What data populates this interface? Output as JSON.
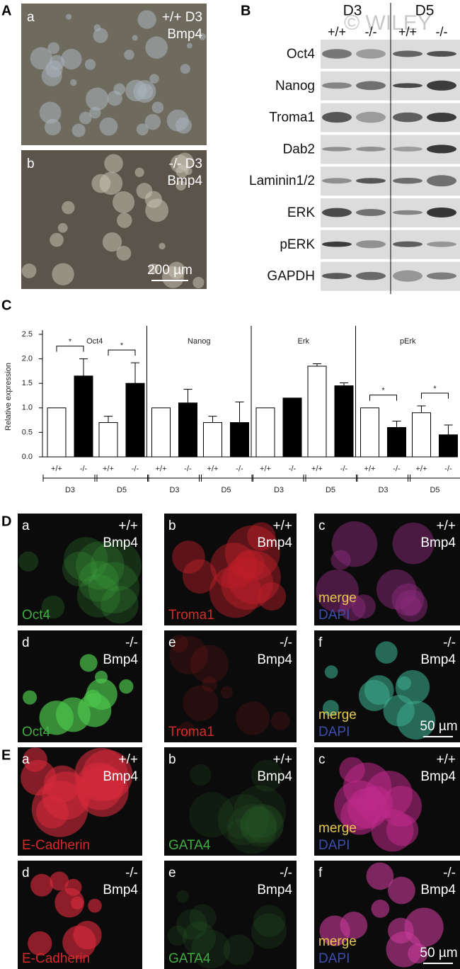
{
  "panel_a": {
    "label": "A",
    "images": [
      {
        "letter": "a",
        "genotype": "+/+ D3",
        "treatment": "Bmp4"
      },
      {
        "letter": "b",
        "genotype": "-/- D3",
        "treatment": "Bmp4",
        "scale_bar": "200 µm"
      }
    ]
  },
  "panel_b": {
    "label": "B",
    "watermark": "© WILEY",
    "days": [
      "D3",
      "D5"
    ],
    "genotypes": [
      "+/+",
      "-/-",
      "+/+",
      "-/-"
    ],
    "proteins": [
      "Oct4",
      "Nanog",
      "Troma1",
      "Dab2",
      "Laminin1/2",
      "ERK",
      "pERK",
      "GAPDH"
    ]
  },
  "chart_data": {
    "type": "bar",
    "label": "C",
    "ylabel": "Relative expression",
    "groups": [
      "Oct4",
      "Nanog",
      "Erk",
      "pErk"
    ],
    "categories": [
      "+/+",
      "-/-",
      "+/+",
      "-/-",
      "+/+",
      "-/-",
      "+/+",
      "-/-",
      "+/+",
      "-/-",
      "+/+",
      "-/-",
      "+/+",
      "-/-",
      "+/+",
      "-/-"
    ],
    "days": [
      "D3",
      "D5",
      "D3",
      "D5",
      "D3",
      "D5",
      "D3",
      "D5"
    ],
    "values": [
      1.0,
      1.65,
      0.7,
      1.5,
      1.0,
      1.1,
      0.7,
      0.7,
      1.0,
      1.2,
      1.85,
      1.45,
      1.0,
      0.6,
      0.9,
      0.45
    ],
    "errors": [
      null,
      0.35,
      0.13,
      0.42,
      null,
      0.28,
      0.13,
      0.42,
      null,
      null,
      0.05,
      0.06,
      null,
      0.13,
      0.14,
      0.2
    ],
    "colors": [
      "#ffffff",
      "#000000"
    ],
    "significance": [
      "*",
      "*",
      null,
      null,
      null,
      null,
      "*",
      "*"
    ],
    "ylim": [
      0,
      2.5
    ],
    "yticks": [
      {
        "value": 0,
        "label": "0.0"
      },
      {
        "value": 0.5,
        "label": "0.5"
      },
      {
        "value": 1,
        "label": "1.0"
      },
      {
        "value": 1.5,
        "label": "1.5"
      },
      {
        "value": 2,
        "label": "2.0"
      },
      {
        "value": 2.5,
        "label": "2.5"
      }
    ]
  },
  "panel_d": {
    "label": "D",
    "images": [
      {
        "letter": "a",
        "genotype": "+/+",
        "treatment": "Bmp4",
        "stains": [
          {
            "text": "Oct4",
            "color": "#3fae3f"
          }
        ]
      },
      {
        "letter": "b",
        "genotype": "+/+",
        "treatment": "Bmp4",
        "stains": [
          {
            "text": "Troma1",
            "color": "#d42a2a"
          }
        ]
      },
      {
        "letter": "c",
        "genotype": "+/+",
        "treatment": "Bmp4",
        "stains": [
          {
            "text": "merge",
            "color": "#e8c84a"
          },
          {
            "text": "DAPI",
            "color": "#3a4fb0"
          }
        ]
      },
      {
        "letter": "d",
        "genotype": "-/-",
        "treatment": "Bmp4",
        "stains": [
          {
            "text": "Oct4",
            "color": "#3fae3f"
          }
        ]
      },
      {
        "letter": "e",
        "genotype": "-/-",
        "treatment": "Bmp4",
        "stains": [
          {
            "text": "Troma1",
            "color": "#d42a2a"
          }
        ]
      },
      {
        "letter": "f",
        "genotype": "-/-",
        "treatment": "Bmp4",
        "stains": [
          {
            "text": "merge",
            "color": "#e8c84a"
          },
          {
            "text": "DAPI",
            "color": "#3a4fb0"
          }
        ],
        "scale_bar": "50 µm"
      }
    ]
  },
  "panel_e": {
    "label": "E",
    "images": [
      {
        "letter": "a",
        "genotype": "+/+",
        "treatment": "Bmp4",
        "stains": [
          {
            "text": "E-Cadherin",
            "color": "#d42a2a"
          }
        ]
      },
      {
        "letter": "b",
        "genotype": "+/+",
        "treatment": "Bmp4",
        "stains": [
          {
            "text": "GATA4",
            "color": "#3fae3f"
          }
        ]
      },
      {
        "letter": "c",
        "genotype": "+/+",
        "treatment": "Bmp4",
        "stains": [
          {
            "text": "merge",
            "color": "#e8c84a"
          },
          {
            "text": "DAPI",
            "color": "#3a4fb0"
          }
        ]
      },
      {
        "letter": "d",
        "genotype": "-/-",
        "treatment": "Bmp4",
        "stains": [
          {
            "text": "E-Cadherin",
            "color": "#d42a2a"
          }
        ]
      },
      {
        "letter": "e",
        "genotype": "-/-",
        "treatment": "Bmp4",
        "stains": [
          {
            "text": "GATA4",
            "color": "#3fae3f"
          }
        ]
      },
      {
        "letter": "f",
        "genotype": "-/-",
        "treatment": "Bmp4",
        "stains": [
          {
            "text": "merge",
            "color": "#e8c84a"
          },
          {
            "text": "DAPI",
            "color": "#3a4fb0"
          }
        ],
        "scale_bar": "50 µm"
      }
    ]
  }
}
